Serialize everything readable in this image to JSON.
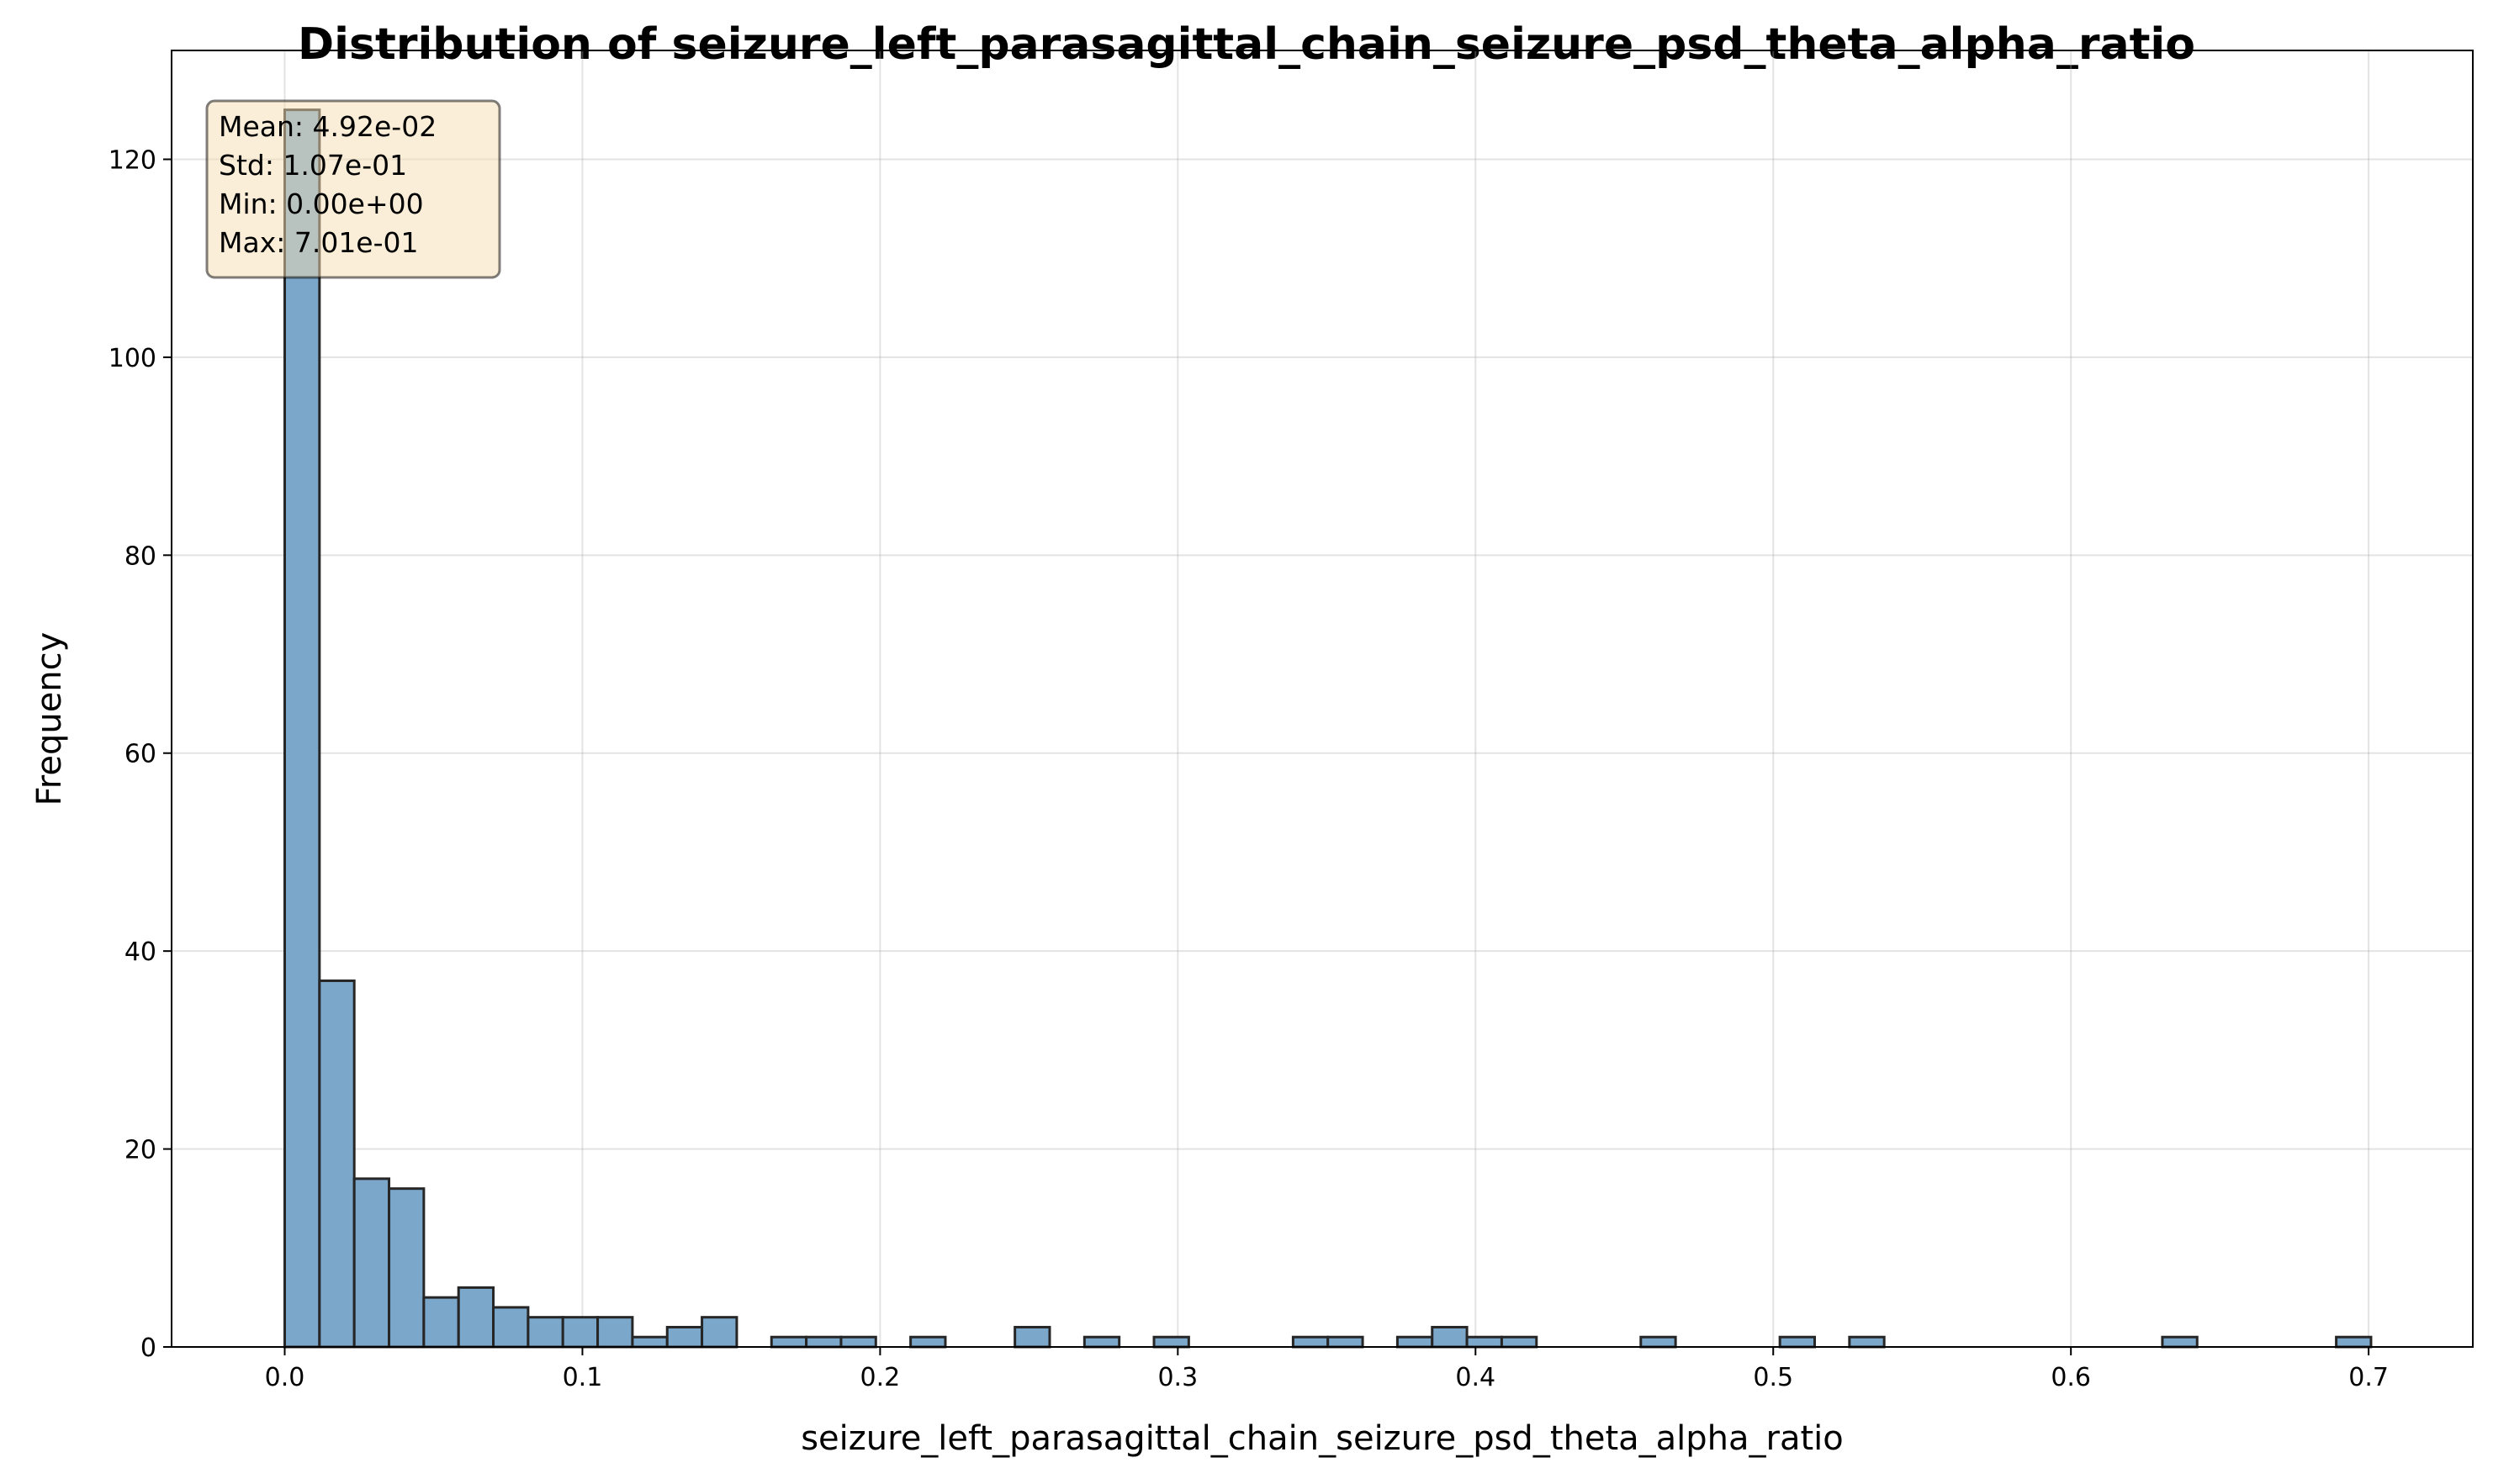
{
  "chart_data": {
    "type": "bar",
    "title": "Distribution of seizure_left_parasagittal_chain_seizure_psd_theta_alpha_ratio",
    "xlabel": "seizure_left_parasagittal_chain_seizure_psd_theta_alpha_ratio",
    "ylabel": "Frequency",
    "xlim": [
      -0.038,
      0.735
    ],
    "ylim": [
      0,
      131
    ],
    "xticks": [
      0.0,
      0.1,
      0.2,
      0.3,
      0.4,
      0.5,
      0.6,
      0.7
    ],
    "xtick_labels": [
      "0.0",
      "0.1",
      "0.2",
      "0.3",
      "0.4",
      "0.5",
      "0.6",
      "0.7"
    ],
    "yticks": [
      0,
      20,
      40,
      60,
      80,
      100,
      120
    ],
    "ytick_labels": [
      "0",
      "20",
      "40",
      "60",
      "80",
      "100",
      "120"
    ],
    "grid": true,
    "bin_start": 0.0,
    "bin_width": 0.01168,
    "counts": [
      125,
      37,
      17,
      16,
      5,
      6,
      4,
      3,
      3,
      3,
      1,
      2,
      3,
      0,
      1,
      1,
      1,
      0,
      1,
      0,
      0,
      2,
      0,
      1,
      0,
      1,
      0,
      0,
      0,
      1,
      1,
      0,
      1,
      2,
      1,
      1,
      0,
      0,
      0,
      1,
      0,
      0,
      0,
      1,
      0,
      1,
      0,
      0,
      0,
      0,
      0,
      0,
      0,
      0,
      1,
      0,
      0,
      0,
      0,
      1
    ],
    "bar_color": "#7BA7CB",
    "edge_color": "#262626",
    "stats_box": {
      "lines": [
        "Mean: 4.92e-02",
        "Std: 1.07e-01",
        "Min: 0.00e+00",
        "Max: 7.01e-01"
      ],
      "placement": "top-left",
      "background": "#F5DEB3"
    }
  }
}
